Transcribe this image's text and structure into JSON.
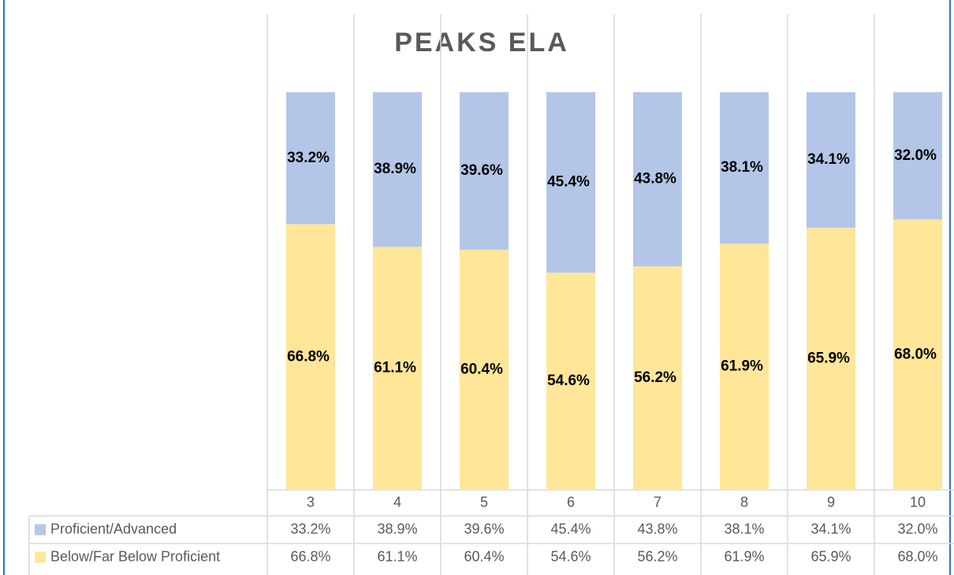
{
  "chart_data": {
    "type": "stacked_bar",
    "title": "PEAKS ELA",
    "categories": [
      "3",
      "4",
      "5",
      "6",
      "7",
      "8",
      "9",
      "10"
    ],
    "ylim": [
      0,
      100
    ],
    "series": [
      {
        "name": "Below/Far Below Proficient",
        "color": "#ffe699",
        "values": [
          66.8,
          61.1,
          60.4,
          54.6,
          56.2,
          61.9,
          65.9,
          68.0
        ],
        "value_labels": [
          "66.8%",
          "61.1%",
          "60.4%",
          "54.6%",
          "56.2%",
          "61.9%",
          "65.9%",
          "68.0%"
        ]
      },
      {
        "name": "Proficient/Advanced",
        "color": "#b4c6e7",
        "values": [
          33.2,
          38.9,
          39.6,
          45.4,
          43.8,
          38.1,
          34.1,
          32.0
        ],
        "value_labels": [
          "33.2%",
          "38.9%",
          "39.6%",
          "45.4%",
          "43.8%",
          "38.1%",
          "34.1%",
          "32.0%"
        ]
      }
    ]
  }
}
